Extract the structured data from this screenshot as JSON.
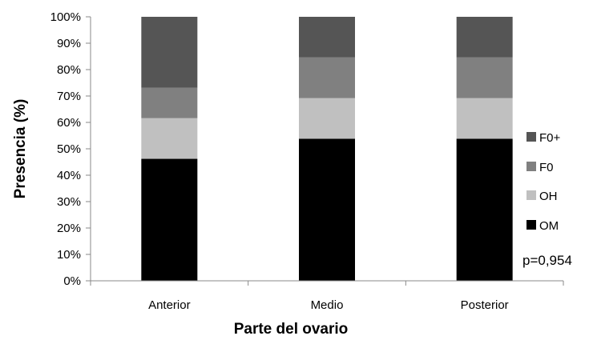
{
  "chart_data": {
    "type": "bar",
    "stacked": true,
    "percent": true,
    "categories": [
      "Anterior",
      "Medio",
      "Posterior"
    ],
    "series": [
      {
        "name": "OM",
        "values": [
          46.2,
          53.8,
          53.8
        ],
        "color": "#000000"
      },
      {
        "name": "OH",
        "values": [
          15.4,
          15.4,
          15.4
        ],
        "color": "#c0c0c0"
      },
      {
        "name": "F0",
        "values": [
          11.5,
          15.4,
          15.4
        ],
        "color": "#808080"
      },
      {
        "name": "F0+",
        "values": [
          26.9,
          15.4,
          15.4
        ],
        "color": "#555555"
      }
    ],
    "xlabel": "Parte del ovario",
    "ylabel": "Presencia (%)",
    "ylim": [
      0,
      100
    ],
    "yticks": [
      "0%",
      "10%",
      "20%",
      "30%",
      "40%",
      "50%",
      "60%",
      "70%",
      "80%",
      "90%",
      "100%"
    ],
    "grid": false,
    "legend_position": "right",
    "legend_order": [
      "F0+",
      "F0",
      "OH",
      "OM"
    ],
    "annotation": "p=0,954"
  }
}
